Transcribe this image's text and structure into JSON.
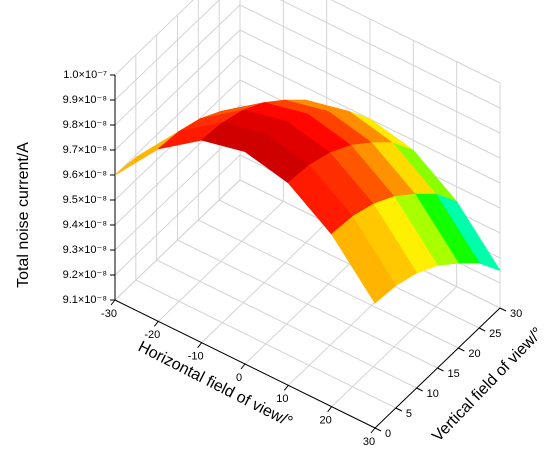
{
  "chart_data": {
    "type": "surface",
    "xlabel": "Horizontal field of view/°",
    "ylabel": "Vertical field of view/°",
    "zlabel": "Total noise current/A",
    "x": [
      -30,
      -20,
      -10,
      0,
      10,
      20,
      30
    ],
    "y": [
      0,
      5,
      10,
      15,
      20,
      25,
      30
    ],
    "z": [
      [
        9.6e-08,
        9.59e-08,
        9.56e-08,
        9.51e-08,
        9.44e-08,
        9.36e-08,
        9.25e-08
      ],
      [
        9.79e-08,
        9.78e-08,
        9.75e-08,
        9.7e-08,
        9.63e-08,
        9.55e-08,
        9.44e-08
      ],
      [
        9.91e-08,
        9.9e-08,
        9.87e-08,
        9.82e-08,
        9.75e-08,
        9.67e-08,
        9.56e-08
      ],
      [
        9.95e-08,
        9.94e-08,
        9.91e-08,
        9.86e-08,
        9.79e-08,
        9.71e-08,
        9.6e-08
      ],
      [
        9.91e-08,
        9.9e-08,
        9.87e-08,
        9.82e-08,
        9.75e-08,
        9.67e-08,
        9.56e-08
      ],
      [
        9.79e-08,
        9.78e-08,
        9.75e-08,
        9.7e-08,
        9.63e-08,
        9.55e-08,
        9.44e-08
      ],
      [
        9.6e-08,
        9.59e-08,
        9.56e-08,
        9.51e-08,
        9.44e-08,
        9.36e-08,
        9.25e-08
      ]
    ],
    "xlim": [
      -30,
      30
    ],
    "ylim": [
      0,
      30
    ],
    "zlim": [
      9.1e-08,
      1e-07
    ],
    "xticks": [
      -30,
      -20,
      -10,
      0,
      10,
      20,
      30
    ],
    "yticks": [
      0,
      5,
      10,
      15,
      20,
      25,
      30
    ],
    "zticks": [
      {
        "value": 9.1e-08,
        "label": "9.1×10⁻⁸"
      },
      {
        "value": 9.2e-08,
        "label": "9.2×10⁻⁸"
      },
      {
        "value": 9.3e-08,
        "label": "9.3×10⁻⁸"
      },
      {
        "value": 9.4e-08,
        "label": "9.4×10⁻⁸"
      },
      {
        "value": 9.5e-08,
        "label": "9.5×10⁻⁸"
      },
      {
        "value": 9.6e-08,
        "label": "9.6×10⁻⁸"
      },
      {
        "value": 9.7e-08,
        "label": "9.7×10⁻⁸"
      },
      {
        "value": 9.8e-08,
        "label": "9.8×10⁻⁸"
      },
      {
        "value": 9.9e-08,
        "label": "9.9×10⁻⁸"
      },
      {
        "value": 1e-07,
        "label": "1.0×10⁻⁷"
      }
    ],
    "grid": true,
    "colormap": [
      "#5a00c8",
      "#0000ff",
      "#00ffff",
      "#00ff00",
      "#ffff00",
      "#ff8000",
      "#ff0000",
      "#8b0000"
    ]
  }
}
